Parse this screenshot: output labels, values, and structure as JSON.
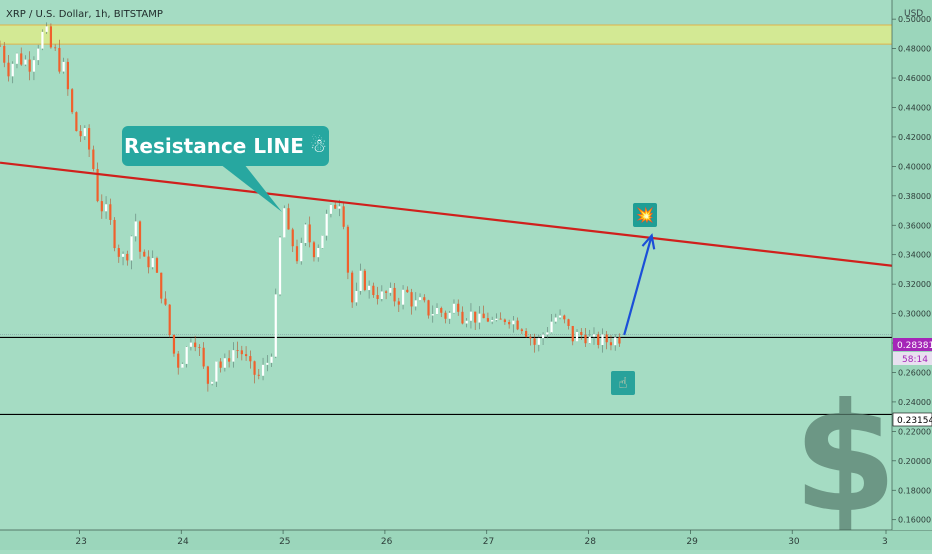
{
  "header": {
    "title": "XRP / U.S. Dollar, 1h, BITSTAMP",
    "unit": "USD"
  },
  "annotations": {
    "callout_text": "Resistance LINE",
    "callout_emoji": "☃",
    "explosion_emoji": "💥",
    "hand_emoji": "☝",
    "dollar_sign": "$"
  },
  "price_labels": {
    "current": "0.28381",
    "countdown": "58:14",
    "support": "0.23154"
  },
  "colors": {
    "background": "#a5dcc3",
    "resistance": "#d0201c",
    "arrow": "#1b4fd8",
    "zone": "#d8ea8f",
    "bull": "#ffffff",
    "bear": "#f0602c",
    "dollar": "#5a8070",
    "badge": "#a526b8"
  },
  "chart_data": {
    "type": "candlestick",
    "symbol": "XRP / U.S. Dollar",
    "timeframe": "1h",
    "exchange": "BITSTAMP",
    "x_ticks": [
      "23",
      "24",
      "25",
      "26",
      "27",
      "28",
      "29",
      "30",
      "3"
    ],
    "y_ticks": [
      "0.50000",
      "0.48000",
      "0.46000",
      "0.44000",
      "0.42000",
      "0.40000",
      "0.38000",
      "0.36000",
      "0.34000",
      "0.32000",
      "0.30000",
      "0.28000",
      "0.26000",
      "0.24000",
      "0.22000",
      "0.20000",
      "0.18000",
      "0.16000"
    ],
    "y_tick_values": [
      0.5,
      0.48,
      0.46,
      0.44,
      0.42,
      0.4,
      0.38,
      0.36,
      0.34,
      0.32,
      0.3,
      0.28,
      0.26,
      0.24,
      0.22,
      0.2,
      0.18,
      0.16
    ],
    "ylim": [
      0.153,
      0.513
    ],
    "xlim": [
      22.22,
      30.98
    ],
    "resistance_zone": [
      0.483,
      0.496
    ],
    "resistance_line": {
      "from": {
        "x": 22.22,
        "y": 0.4025
      },
      "to": {
        "x": 30.98,
        "y": 0.3325
      }
    },
    "support_lines": [
      0.2838,
      0.2315
    ],
    "projection_arrow": {
      "from": {
        "x": 28.35,
        "y": 0.2855
      },
      "to": {
        "x": 28.62,
        "y": 0.353
      }
    },
    "price_path": [
      [
        22.22,
        0.482
      ],
      [
        22.3,
        0.468
      ],
      [
        22.4,
        0.475
      ],
      [
        22.5,
        0.47
      ],
      [
        22.6,
        0.486
      ],
      [
        22.66,
        0.49
      ],
      [
        22.72,
        0.48
      ],
      [
        22.8,
        0.472
      ],
      [
        22.86,
        0.462
      ],
      [
        22.9,
        0.445
      ],
      [
        22.95,
        0.426
      ],
      [
        23.0,
        0.423
      ],
      [
        23.08,
        0.416
      ],
      [
        23.15,
        0.395
      ],
      [
        23.18,
        0.38
      ],
      [
        23.24,
        0.37
      ],
      [
        23.3,
        0.36
      ],
      [
        23.36,
        0.35
      ],
      [
        23.42,
        0.335
      ],
      [
        23.5,
        0.35
      ],
      [
        23.55,
        0.365
      ],
      [
        23.62,
        0.33
      ],
      [
        23.7,
        0.34
      ],
      [
        23.78,
        0.32
      ],
      [
        23.84,
        0.305
      ],
      [
        23.9,
        0.28
      ],
      [
        23.96,
        0.265
      ],
      [
        24.02,
        0.27
      ],
      [
        24.1,
        0.285
      ],
      [
        24.16,
        0.28
      ],
      [
        24.22,
        0.262
      ],
      [
        24.28,
        0.25
      ],
      [
        24.34,
        0.27
      ],
      [
        24.4,
        0.262
      ],
      [
        24.46,
        0.27
      ],
      [
        24.52,
        0.276
      ],
      [
        24.58,
        0.275
      ],
      [
        24.64,
        0.268
      ],
      [
        24.7,
        0.26
      ],
      [
        24.76,
        0.257
      ],
      [
        24.82,
        0.265
      ],
      [
        24.88,
        0.27
      ],
      [
        24.92,
        0.3
      ],
      [
        24.96,
        0.34
      ],
      [
        25.0,
        0.375
      ],
      [
        25.03,
        0.365
      ],
      [
        25.06,
        0.345
      ],
      [
        25.1,
        0.348
      ],
      [
        25.16,
        0.335
      ],
      [
        25.22,
        0.355
      ],
      [
        25.3,
        0.345
      ],
      [
        25.36,
        0.35
      ],
      [
        25.42,
        0.363
      ],
      [
        25.48,
        0.368
      ],
      [
        25.52,
        0.378
      ],
      [
        25.58,
        0.38
      ],
      [
        25.62,
        0.345
      ],
      [
        25.66,
        0.31
      ],
      [
        25.7,
        0.305
      ],
      [
        25.76,
        0.325
      ],
      [
        25.82,
        0.318
      ],
      [
        25.88,
        0.315
      ],
      [
        25.96,
        0.312
      ],
      [
        26.04,
        0.314
      ],
      [
        26.12,
        0.308
      ],
      [
        26.2,
        0.316
      ],
      [
        26.28,
        0.306
      ],
      [
        26.36,
        0.308
      ],
      [
        26.44,
        0.3
      ],
      [
        26.52,
        0.303
      ],
      [
        26.6,
        0.298
      ],
      [
        26.66,
        0.301
      ],
      [
        26.7,
        0.31
      ],
      [
        26.76,
        0.298
      ],
      [
        26.84,
        0.3
      ],
      [
        26.92,
        0.295
      ],
      [
        27.0,
        0.297
      ],
      [
        27.1,
        0.292
      ],
      [
        27.2,
        0.298
      ],
      [
        27.28,
        0.294
      ],
      [
        27.34,
        0.292
      ],
      [
        27.42,
        0.285
      ],
      [
        27.48,
        0.278
      ],
      [
        27.54,
        0.285
      ],
      [
        27.6,
        0.29
      ],
      [
        27.66,
        0.298
      ],
      [
        27.72,
        0.296
      ],
      [
        27.78,
        0.293
      ],
      [
        27.84,
        0.283
      ],
      [
        27.9,
        0.286
      ],
      [
        27.96,
        0.285
      ],
      [
        28.02,
        0.282
      ],
      [
        28.08,
        0.281
      ],
      [
        28.14,
        0.282
      ],
      [
        28.2,
        0.281
      ],
      [
        28.26,
        0.283
      ],
      [
        28.32,
        0.2838
      ]
    ]
  }
}
